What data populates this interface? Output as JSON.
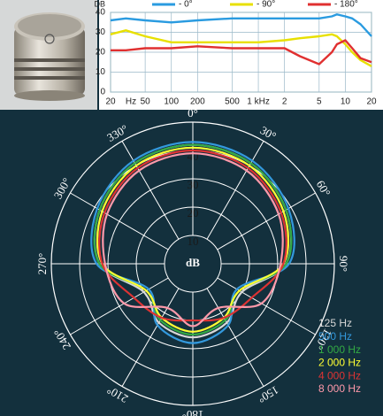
{
  "chart_data": [
    {
      "type": "line",
      "y_label": "DB",
      "x_unit": "Hz",
      "log_x": true,
      "grid": true,
      "x": [
        20,
        30,
        50,
        100,
        200,
        500,
        1000,
        2000,
        3000,
        5000,
        7000,
        8000,
        10000,
        12000,
        15000,
        20000
      ],
      "series": [
        {
          "name": "- 0°",
          "color": "#2a9be0",
          "values": [
            36,
            37,
            36,
            35,
            36,
            37,
            37,
            37,
            37,
            37,
            38,
            39,
            38,
            37,
            34,
            28
          ]
        },
        {
          "name": "- 90°",
          "color": "#e8e000",
          "values": [
            29,
            31,
            28,
            25,
            25,
            25,
            25,
            26,
            27,
            28,
            29,
            28,
            24,
            20,
            16,
            13
          ]
        },
        {
          "name": "- 180°",
          "color": "#e03030",
          "values": [
            21,
            21,
            22,
            22,
            23,
            22,
            22,
            22,
            18,
            14,
            20,
            24,
            26,
            22,
            17,
            15
          ]
        }
      ],
      "xlim": [
        20,
        20000
      ],
      "xticks": [
        20,
        50,
        100,
        200,
        500,
        {
          "value": 1000,
          "label": "1 kHz"
        },
        {
          "value": 2000,
          "label": "2"
        },
        {
          "value": 5000,
          "label": "5"
        },
        {
          "value": 10000,
          "label": "10"
        },
        {
          "value": 20000,
          "label": "20"
        }
      ],
      "ylim": [
        0,
        40
      ],
      "yticks": [
        0,
        10,
        20,
        30,
        40
      ]
    },
    {
      "type": "polar",
      "r_label": "dB",
      "rlim": [
        0,
        50
      ],
      "rticks": [
        10,
        20,
        30,
        40
      ],
      "x": [
        0,
        30,
        60,
        90,
        120,
        150,
        180,
        210,
        240,
        270,
        300,
        330
      ],
      "thetaticks": [
        {
          "value": 0,
          "label": "0°"
        },
        {
          "value": 30,
          "label": "30°"
        },
        {
          "value": 60,
          "label": "60°"
        },
        {
          "value": 90,
          "label": "90°"
        },
        {
          "value": 120,
          "label": "120°"
        },
        {
          "value": 150,
          "label": "150°"
        },
        {
          "value": 180,
          "label": "180°"
        },
        {
          "value": 210,
          "label": "210°"
        },
        {
          "value": 240,
          "label": "240°"
        },
        {
          "value": 270,
          "label": "270°"
        },
        {
          "value": 300,
          "label": "300°"
        },
        {
          "value": 330,
          "label": "330°"
        }
      ],
      "series": [
        {
          "name": "125 Hz",
          "color": "#d8d8d8",
          "values": [
            42,
            41,
            38,
            33,
            20,
            24,
            26,
            24,
            20,
            33,
            38,
            41
          ]
        },
        {
          "name": "500 Hz",
          "color": "#3399dd",
          "values": [
            43,
            42,
            39,
            34,
            18,
            25,
            28,
            25,
            18,
            34,
            39,
            42
          ]
        },
        {
          "name": "1 000 Hz",
          "color": "#33aa44",
          "values": [
            42,
            41,
            38,
            33,
            19,
            23,
            25,
            23,
            19,
            33,
            38,
            41
          ]
        },
        {
          "name": "2 000 Hz",
          "color": "#ffff33",
          "values": [
            41,
            40,
            37,
            32,
            19,
            22,
            24,
            22,
            19,
            32,
            37,
            40
          ]
        },
        {
          "name": "4 000 Hz",
          "color": "#dd3333",
          "values": [
            40,
            39,
            36,
            32,
            24,
            22,
            20,
            22,
            24,
            32,
            36,
            39
          ]
        },
        {
          "name": "8 000 Hz",
          "color": "#ff99aa",
          "values": [
            39,
            38,
            35,
            31,
            28,
            18,
            22,
            18,
            28,
            31,
            35,
            38
          ]
        }
      ]
    }
  ]
}
